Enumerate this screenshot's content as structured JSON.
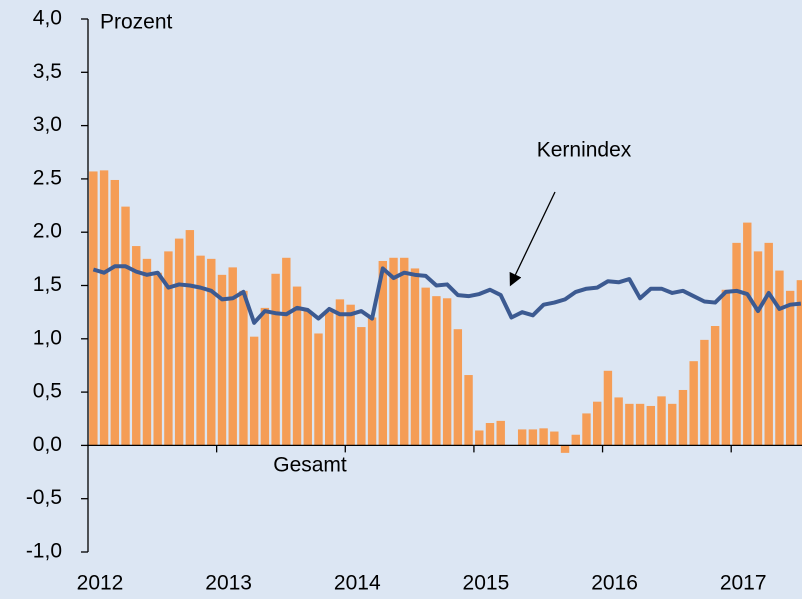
{
  "chart_data": {
    "type": "bar",
    "ylabel": "Prozent",
    "categories": [
      "2012",
      null,
      null,
      null,
      null,
      null,
      null,
      null,
      null,
      null,
      null,
      null,
      "2013",
      null,
      null,
      null,
      null,
      null,
      null,
      null,
      null,
      null,
      null,
      null,
      "2014",
      null,
      null,
      null,
      null,
      null,
      null,
      null,
      null,
      null,
      null,
      null,
      "2015",
      null,
      null,
      null,
      null,
      null,
      null,
      null,
      null,
      null,
      null,
      null,
      "2016",
      null,
      null,
      null,
      null,
      null,
      null,
      null,
      null,
      null,
      null,
      null,
      "2017",
      null,
      null,
      null,
      null,
      null,
      null
    ],
    "series": [
      {
        "name": "Gesamt",
        "type": "bar",
        "color": "#f59d56",
        "values": [
          2.57,
          2.58,
          2.49,
          2.24,
          1.87,
          1.75,
          1.62,
          1.82,
          1.94,
          2.02,
          1.78,
          1.75,
          1.6,
          1.67,
          1.45,
          1.02,
          1.29,
          1.61,
          1.76,
          1.49,
          1.26,
          1.05,
          1.25,
          1.37,
          1.32,
          1.11,
          1.2,
          1.73,
          1.76,
          1.76,
          1.66,
          1.48,
          1.4,
          1.38,
          1.09,
          0.66,
          0.14,
          0.21,
          0.23,
          0,
          0.15,
          0.15,
          0.16,
          0.13,
          -0.07,
          0.1,
          0.3,
          0.41,
          0.7,
          0.45,
          0.39,
          0.39,
          0.37,
          0.46,
          0.39,
          0.52,
          0.79,
          0.99,
          1.12,
          1.46,
          1.9,
          2.09,
          1.82,
          1.9,
          1.64,
          1.45,
          1.55
        ]
      },
      {
        "name": "Kernindex",
        "type": "line",
        "color": "#3c5a91",
        "values": [
          1.65,
          1.62,
          1.68,
          1.68,
          1.63,
          1.6,
          1.62,
          1.48,
          1.51,
          1.5,
          1.48,
          1.45,
          1.37,
          1.38,
          1.44,
          1.15,
          1.26,
          1.24,
          1.23,
          1.29,
          1.27,
          1.19,
          1.28,
          1.23,
          1.23,
          1.26,
          1.19,
          1.66,
          1.57,
          1.62,
          1.6,
          1.59,
          1.5,
          1.51,
          1.41,
          1.4,
          1.42,
          1.46,
          1.41,
          1.2,
          1.25,
          1.22,
          1.32,
          1.34,
          1.37,
          1.44,
          1.47,
          1.48,
          1.54,
          1.53,
          1.56,
          1.38,
          1.47,
          1.47,
          1.43,
          1.45,
          1.4,
          1.35,
          1.34,
          1.44,
          1.45,
          1.42,
          1.26,
          1.43,
          1.28,
          1.32,
          1.33
        ]
      }
    ],
    "ylim": [
      -1,
      4
    ],
    "yticks": [
      {
        "value": 4,
        "label": "4,0"
      },
      {
        "value": 3.5,
        "label": "3,5"
      },
      {
        "value": 3,
        "label": "3,0"
      },
      2.5,
      {
        "value": 2,
        "label": "2.0"
      },
      {
        "value": 1.5,
        "label": "1,5"
      },
      {
        "value": 1,
        "label": "1,0"
      },
      {
        "value": 0.5,
        "label": "0,5"
      },
      {
        "value": 0,
        "label": "0,0"
      },
      {
        "value": -0.5,
        "label": "-0,5"
      },
      {
        "value": -1,
        "label": "-1,0"
      }
    ]
  }
}
